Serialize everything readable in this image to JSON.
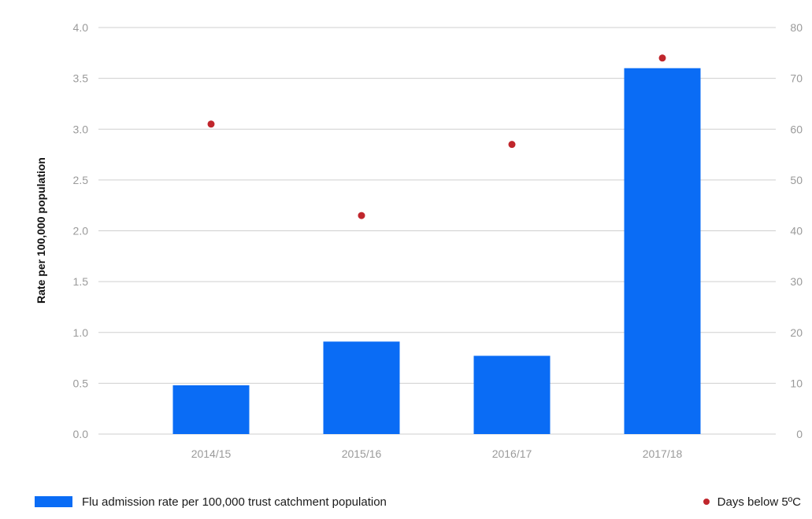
{
  "chart_data": {
    "type": "bar",
    "categories": [
      "2014/15",
      "2015/16",
      "2016/17",
      "2017/18"
    ],
    "series": [
      {
        "name": "Flu admission rate per 100,000 trust catchment population",
        "type": "bar",
        "axis": "left",
        "color": "#0a6cf5",
        "values": [
          0.48,
          0.91,
          0.77,
          3.6
        ]
      },
      {
        "name": "Days below 5ºC",
        "type": "scatter",
        "axis": "right",
        "color": "#c0262c",
        "values": [
          61,
          43,
          57,
          74
        ]
      }
    ],
    "ylabel": "Rate per 100,000 population",
    "xlabel": "",
    "ylim": [
      0,
      4.0
    ],
    "y_ticks": [
      "0.0",
      "0.5",
      "1.0",
      "1.5",
      "2.0",
      "2.5",
      "3.0",
      "3.5",
      "4.0"
    ],
    "y2lim": [
      0,
      80
    ],
    "y2_ticks": [
      "0",
      "10",
      "20",
      "30",
      "40",
      "50",
      "60",
      "70",
      "80"
    ],
    "grid": true,
    "legend_position": "bottom"
  }
}
